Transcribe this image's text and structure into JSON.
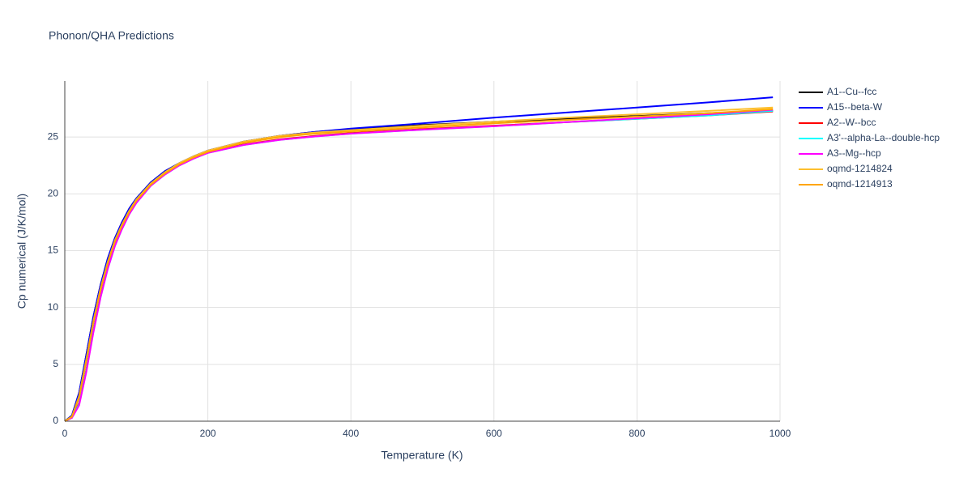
{
  "chart_data": {
    "type": "line",
    "title": "Phonon/QHA Predictions",
    "x_label": "Temperature (K)",
    "y_label": "Cp numerical (J/K/mol)",
    "x": [
      0,
      10,
      20,
      30,
      40,
      50,
      60,
      70,
      80,
      90,
      100,
      120,
      140,
      160,
      180,
      200,
      250,
      300,
      350,
      400,
      500,
      600,
      700,
      800,
      900,
      990
    ],
    "series": [
      {
        "name": "A1--Cu--fcc",
        "color": "#000000",
        "values": [
          0,
          0.5,
          2.5,
          5.8,
          9.2,
          12.0,
          14.3,
          16.1,
          17.5,
          18.7,
          19.6,
          21.0,
          22.0,
          22.7,
          23.3,
          23.8,
          24.6,
          25.1,
          25.45,
          25.7,
          26.05,
          26.35,
          26.6,
          26.85,
          27.1,
          27.3
        ]
      },
      {
        "name": "A15--beta-W",
        "color": "#0000ff",
        "values": [
          0,
          0.5,
          2.5,
          5.8,
          9.2,
          12.0,
          14.3,
          16.1,
          17.5,
          18.7,
          19.6,
          21.0,
          22.0,
          22.7,
          23.3,
          23.8,
          24.6,
          25.1,
          25.45,
          25.75,
          26.2,
          26.7,
          27.15,
          27.6,
          28.05,
          28.5
        ]
      },
      {
        "name": "A2--W--bcc",
        "color": "#ff0000",
        "values": [
          0,
          0.3,
          1.6,
          4.5,
          8.0,
          11.0,
          13.5,
          15.5,
          17.0,
          18.3,
          19.3,
          20.8,
          21.8,
          22.6,
          23.2,
          23.65,
          24.35,
          24.8,
          25.1,
          25.35,
          25.7,
          26.0,
          26.3,
          26.6,
          26.9,
          27.25
        ]
      },
      {
        "name": "A3'--alpha-La--double-hcp",
        "color": "#00ffff",
        "values": [
          0,
          0.3,
          1.5,
          4.4,
          7.9,
          10.9,
          13.4,
          15.4,
          16.9,
          18.2,
          19.2,
          20.7,
          21.7,
          22.5,
          23.1,
          23.6,
          24.3,
          24.75,
          25.05,
          25.3,
          25.65,
          25.95,
          26.3,
          26.6,
          26.9,
          27.3
        ]
      },
      {
        "name": "A3--Mg--hcp",
        "color": "#ff00ff",
        "values": [
          0,
          0.3,
          1.4,
          4.3,
          7.8,
          10.9,
          13.4,
          15.4,
          16.9,
          18.2,
          19.2,
          20.7,
          21.7,
          22.5,
          23.1,
          23.6,
          24.3,
          24.75,
          25.05,
          25.3,
          25.65,
          25.95,
          26.3,
          26.65,
          27.0,
          27.4
        ]
      },
      {
        "name": "oqmd-1214824",
        "color": "#fdbf2d",
        "values": [
          0,
          0.4,
          2.2,
          5.4,
          8.8,
          11.7,
          14.0,
          15.9,
          17.3,
          18.5,
          19.5,
          20.9,
          21.9,
          22.7,
          23.3,
          23.8,
          24.6,
          25.1,
          25.4,
          25.6,
          26.0,
          26.35,
          26.7,
          27.0,
          27.3,
          27.6
        ]
      },
      {
        "name": "oqmd-1214913",
        "color": "#ffa500",
        "values": [
          0,
          0.4,
          2.1,
          5.3,
          8.7,
          11.6,
          13.9,
          15.8,
          17.2,
          18.4,
          19.4,
          20.8,
          21.8,
          22.6,
          23.2,
          23.7,
          24.5,
          25.0,
          25.3,
          25.5,
          25.85,
          26.2,
          26.5,
          26.8,
          27.1,
          27.45
        ]
      }
    ],
    "xlim": [
      0,
      1000
    ],
    "xticks": [
      0,
      200,
      400,
      600,
      800,
      1000
    ],
    "ylim": [
      0,
      29.93
    ],
    "yticks": [
      0,
      5,
      10,
      15,
      20,
      25
    ],
    "grid": true
  }
}
